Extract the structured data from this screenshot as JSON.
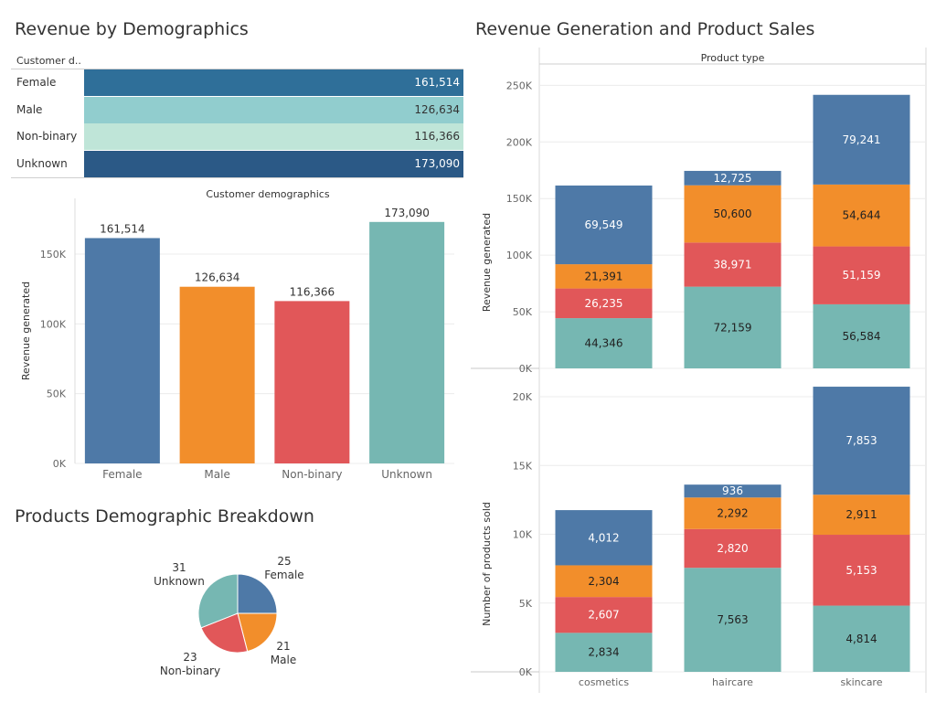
{
  "colors": {
    "blue": "#4e79a7",
    "orange": "#f28e2b",
    "red": "#e15759",
    "teal": "#76b7b2",
    "table_female": "#2f6f99",
    "table_male": "#91cdce",
    "table_nonbinary": "#bfe5d8",
    "table_unknown": "#2b5986"
  },
  "demographics_panel": {
    "title": "Revenue by Demographics",
    "table": {
      "header": "Customer d..",
      "rows": [
        {
          "label": "Female",
          "value": "161,514"
        },
        {
          "label": "Male",
          "value": "126,634"
        },
        {
          "label": "Non-binary",
          "value": "116,366"
        },
        {
          "label": "Unknown",
          "value": "173,090"
        }
      ]
    }
  },
  "pie_panel": {
    "title": "Products Demographic Breakdown"
  },
  "right_panel": {
    "title": "Revenue Generation and Product Sales"
  },
  "chart_data": [
    {
      "type": "bar",
      "title": "Customer demographics",
      "xlabel": "",
      "ylabel": "Revenue generated",
      "categories": [
        "Female",
        "Male",
        "Non-binary",
        "Unknown"
      ],
      "values": [
        161514,
        126634,
        116366,
        173090
      ],
      "value_labels": [
        "161,514",
        "126,634",
        "116,366",
        "173,090"
      ],
      "ylim": [
        0,
        190000
      ],
      "yticks": [
        0,
        50000,
        100000,
        150000
      ],
      "ytick_labels": [
        "0K",
        "50K",
        "100K",
        "150K"
      ],
      "grid": true
    },
    {
      "type": "pie",
      "slices": [
        {
          "label": "Female",
          "value": 25
        },
        {
          "label": "Male",
          "value": 21
        },
        {
          "label": "Non-binary",
          "value": 23
        },
        {
          "label": "Unknown",
          "value": 31
        }
      ]
    },
    {
      "type": "bar",
      "stacked": true,
      "title": "Product type",
      "ylabel": "Revenue generated",
      "categories": [
        "cosmetics",
        "haircare",
        "skincare"
      ],
      "series": [
        {
          "values": [
            44346,
            72159,
            56584
          ],
          "labels": [
            "44,346",
            "72,159",
            "56,584"
          ]
        },
        {
          "values": [
            26235,
            38971,
            51159
          ],
          "labels": [
            "26,235",
            "38,971",
            "51,159"
          ]
        },
        {
          "values": [
            21391,
            50600,
            54644
          ],
          "labels": [
            "21,391",
            "50,600",
            "54,644"
          ]
        },
        {
          "values": [
            69549,
            12725,
            79241
          ],
          "labels": [
            "69,549",
            "12,725",
            "79,241"
          ]
        }
      ],
      "ylim": [
        0,
        260000
      ],
      "yticks": [
        0,
        50000,
        100000,
        150000,
        200000,
        250000
      ],
      "ytick_labels": [
        "0K",
        "50K",
        "100K",
        "150K",
        "200K",
        "250K"
      ],
      "grid": true
    },
    {
      "type": "bar",
      "stacked": true,
      "ylabel": "Number of products sold",
      "categories": [
        "cosmetics",
        "haircare",
        "skincare"
      ],
      "series": [
        {
          "values": [
            2834,
            7563,
            4814
          ],
          "labels": [
            "2,834",
            "7,563",
            "4,814"
          ]
        },
        {
          "values": [
            2607,
            2820,
            5153
          ],
          "labels": [
            "2,607",
            "2,820",
            "5,153"
          ]
        },
        {
          "values": [
            2304,
            2292,
            2911
          ],
          "labels": [
            "2,304",
            "2,292",
            "2,911"
          ]
        },
        {
          "values": [
            4012,
            936,
            7853
          ],
          "labels": [
            "4,012",
            "936",
            "7,853"
          ]
        }
      ],
      "ylim": [
        0,
        21000
      ],
      "yticks": [
        0,
        5000,
        10000,
        15000,
        20000
      ],
      "ytick_labels": [
        "0K",
        "5K",
        "10K",
        "15K",
        "20K"
      ],
      "grid": true
    }
  ]
}
